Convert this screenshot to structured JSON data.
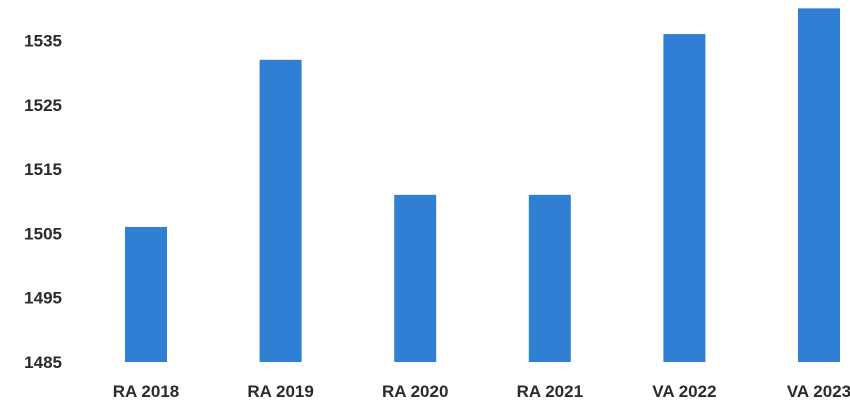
{
  "chart_data": {
    "type": "bar",
    "categories": [
      "RA 2018",
      "RA 2019",
      "RA 2020",
      "RA 2021",
      "VA 2022",
      "VA 2023"
    ],
    "values": [
      1506,
      1532,
      1511,
      1511,
      1536,
      1540
    ],
    "title": "",
    "xlabel": "",
    "ylabel": "",
    "ylim": [
      1485,
      1540
    ],
    "yticks": [
      "1485",
      "1495",
      "1505",
      "1515",
      "1525",
      "1535"
    ],
    "grid": false,
    "legend": "none",
    "bar_color": "#2f7fd4"
  }
}
